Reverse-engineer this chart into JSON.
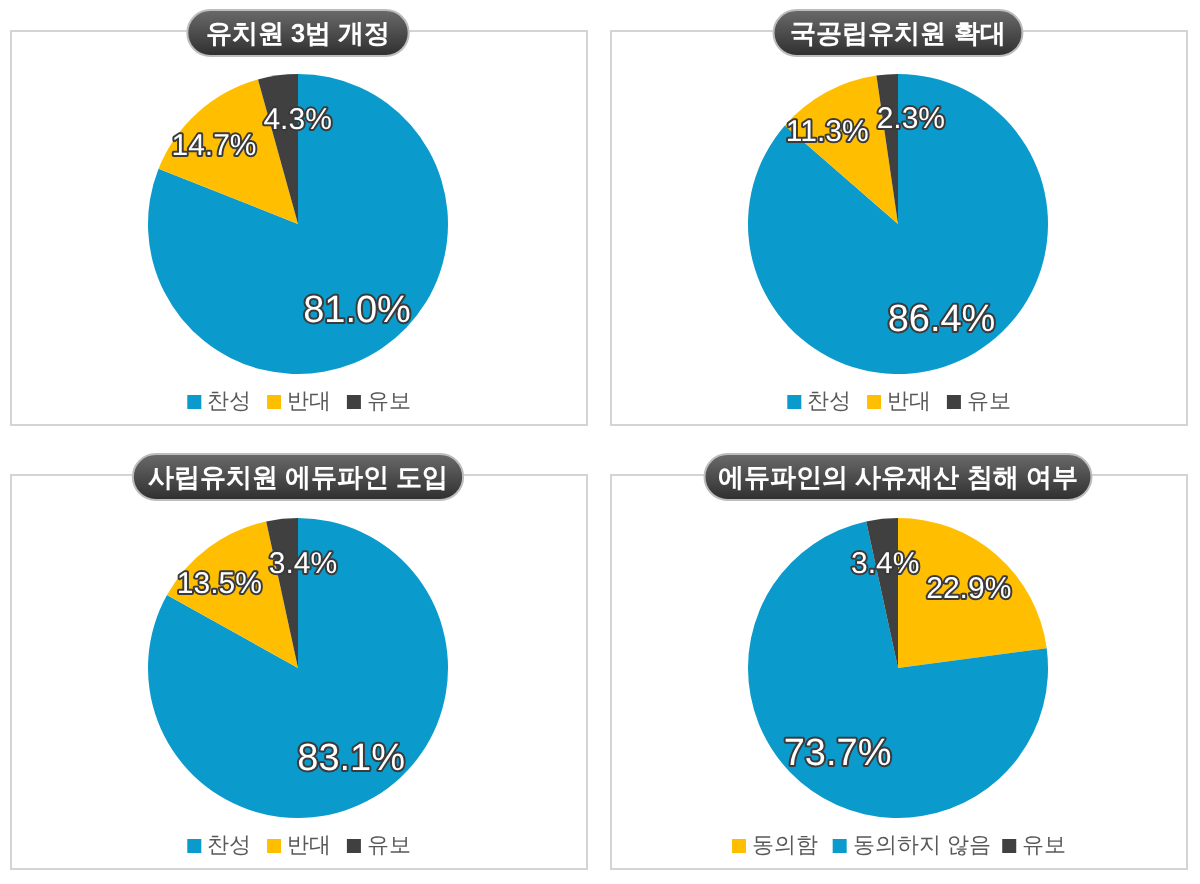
{
  "chart_data": [
    {
      "type": "pie",
      "title": "유치원 3법 개정",
      "categories": [
        "찬성",
        "반대",
        "유보"
      ],
      "values": [
        81.0,
        14.7,
        4.3
      ],
      "colors": [
        "#0a9acb",
        "#ffbf00",
        "#404040"
      ],
      "value_labels": [
        "81.0%",
        "14.7%",
        "4.3%"
      ],
      "legend": "bottom"
    },
    {
      "type": "pie",
      "title": "국공립유치원 확대",
      "categories": [
        "찬성",
        "반대",
        "유보"
      ],
      "values": [
        86.4,
        11.3,
        2.3
      ],
      "colors": [
        "#0a9acb",
        "#ffbf00",
        "#404040"
      ],
      "value_labels": [
        "86.4%",
        "11.3%",
        "2.3%"
      ],
      "legend": "bottom"
    },
    {
      "type": "pie",
      "title": "사립유치원 에듀파인 도입",
      "categories": [
        "찬성",
        "반대",
        "유보"
      ],
      "values": [
        83.1,
        13.5,
        3.4
      ],
      "colors": [
        "#0a9acb",
        "#ffbf00",
        "#404040"
      ],
      "value_labels": [
        "83.1%",
        "13.5%",
        "3.4%"
      ],
      "legend": "bottom"
    },
    {
      "type": "pie",
      "title": "에듀파인의 사유재산 침해 여부",
      "categories": [
        "동의함",
        "동의하지 않음",
        "유보"
      ],
      "values": [
        22.9,
        73.7,
        3.4
      ],
      "colors": [
        "#ffbf00",
        "#0a9acb",
        "#404040"
      ],
      "value_labels": [
        "22.9%",
        "73.7%",
        "3.4%"
      ],
      "legend": "bottom"
    }
  ]
}
